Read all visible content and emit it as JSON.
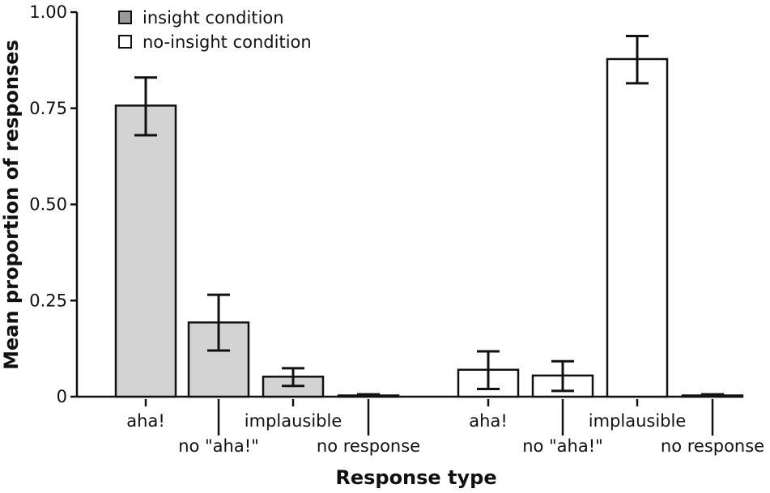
{
  "chart_data": {
    "type": "bar",
    "title": "",
    "xlabel": "Response type",
    "ylabel": "Mean proportion of responses",
    "ylim": [
      0,
      1.0
    ],
    "yticks": [
      0,
      0.25,
      0.5,
      0.75,
      1.0
    ],
    "ytick_labels": [
      "0",
      "0.25",
      "0.50",
      "0.75",
      "1.00"
    ],
    "grid": false,
    "legend_position": "top-left",
    "series": [
      {
        "name": "insight condition",
        "color": "#d3d3d3",
        "categories": [
          "aha!",
          "no \"aha!\"",
          "implausible",
          "no response"
        ],
        "values": [
          0.757,
          0.193,
          0.052,
          0.003
        ],
        "err_low": [
          0.68,
          0.12,
          0.028,
          0.001
        ],
        "err_high": [
          0.83,
          0.265,
          0.074,
          0.006
        ]
      },
      {
        "name": "no-insight condition",
        "color": "#ffffff",
        "categories": [
          "aha!",
          "no \"aha!\"",
          "implausible",
          "no response"
        ],
        "values": [
          0.07,
          0.055,
          0.878,
          0.003
        ],
        "err_low": [
          0.02,
          0.015,
          0.815,
          0.001
        ],
        "err_high": [
          0.118,
          0.092,
          0.938,
          0.006
        ]
      }
    ]
  }
}
